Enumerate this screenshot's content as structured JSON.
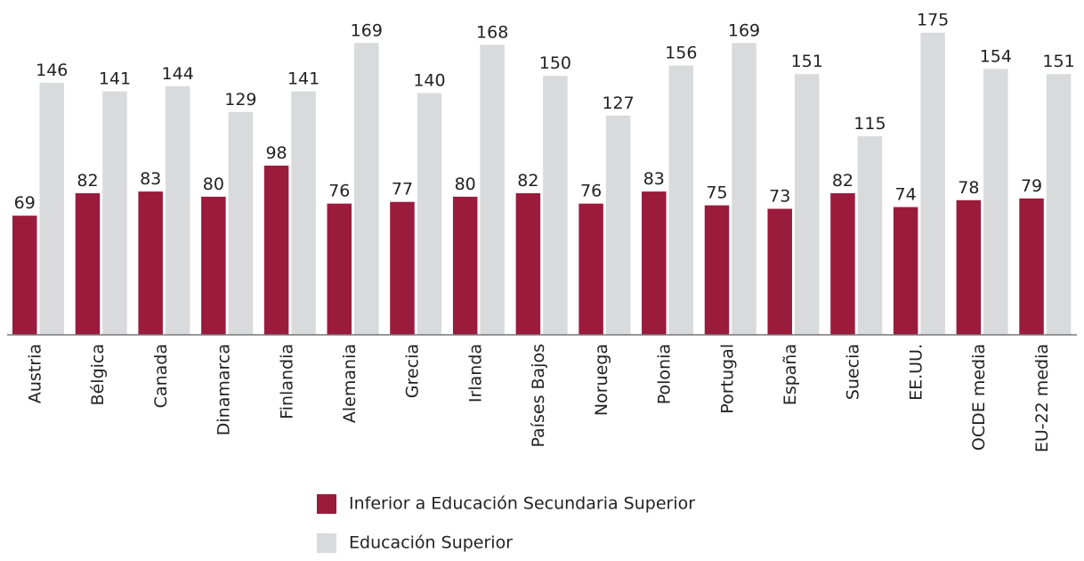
{
  "chart_data": {
    "type": "bar",
    "categories": [
      "Austria",
      "Bélgica",
      "Canada",
      "Dinamarca",
      "Finlandia",
      "Alemania",
      "Grecia",
      "Irlanda",
      "Países Bajos",
      "Noruega",
      "Polonia",
      "Portugal",
      "España",
      "Suecia",
      "EE.UU.",
      "OCDE media",
      "EU-22 media"
    ],
    "series": [
      {
        "name": "Inferior a Educación Secundaria Superior",
        "color": "#9b1b3c",
        "values": [
          69,
          82,
          83,
          80,
          98,
          76,
          77,
          80,
          82,
          76,
          83,
          75,
          73,
          82,
          74,
          78,
          79
        ]
      },
      {
        "name": "Educación Superior",
        "color": "#d9dadc",
        "values": [
          146,
          141,
          144,
          129,
          141,
          169,
          140,
          168,
          150,
          127,
          156,
          169,
          151,
          115,
          175,
          154,
          151
        ]
      }
    ],
    "ylim": [
      0,
      180
    ]
  }
}
